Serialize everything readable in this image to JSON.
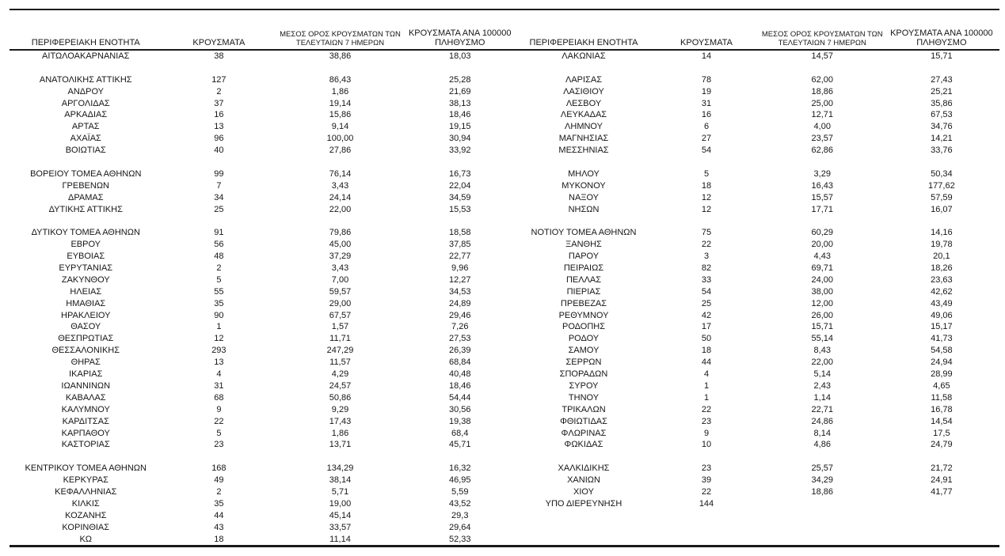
{
  "table": {
    "headers": {
      "region": "ΠΕΡΙΦΕΡΕΙΑΚΗ ΕΝΟΤΗΤΑ",
      "cases": "ΚΡΟΥΣΜΑΤΑ",
      "avg7_line1": "ΜΕΣΟΣ ΟΡΟΣ ΚΡΟΥΣΜΑΤΩΝ ΤΩΝ",
      "avg7_line2": "ΤΕΛΕΥΤΑΙΩΝ 7 ΗΜΕΡΩΝ",
      "per100k_line1": "ΚΡΟΥΣΜΑΤΑ ΑΝΑ 100000",
      "per100k_line2": "ΠΛΗΘΥΣΜΟ"
    },
    "left_rows": [
      [
        "ΑΙΤΩΛΟΑΚΑΡΝΑΝΙΑΣ",
        "38",
        "38,86",
        "18,03"
      ],
      null,
      [
        "ΑΝΑΤΟΛΙΚΗΣ ΑΤΤΙΚΗΣ",
        "127",
        "86,43",
        "25,28"
      ],
      [
        "ΑΝΔΡΟΥ",
        "2",
        "1,86",
        "21,69"
      ],
      [
        "ΑΡΓΟΛΙΔΑΣ",
        "37",
        "19,14",
        "38,13"
      ],
      [
        "ΑΡΚΑΔΙΑΣ",
        "16",
        "15,86",
        "18,46"
      ],
      [
        "ΑΡΤΑΣ",
        "13",
        "9,14",
        "19,15"
      ],
      [
        "ΑΧΑΪΑΣ",
        "96",
        "100,00",
        "30,94"
      ],
      [
        "ΒΟΙΩΤΙΑΣ",
        "40",
        "27,86",
        "33,92"
      ],
      null,
      [
        "ΒΟΡΕΙΟΥ ΤΟΜΕΑ ΑΘΗΝΩΝ",
        "99",
        "76,14",
        "16,73"
      ],
      [
        "ΓΡΕΒΕΝΩΝ",
        "7",
        "3,43",
        "22,04"
      ],
      [
        "ΔΡΑΜΑΣ",
        "34",
        "24,14",
        "34,59"
      ],
      [
        "ΔΥΤΙΚΗΣ ΑΤΤΙΚΗΣ",
        "25",
        "22,00",
        "15,53"
      ],
      null,
      [
        "ΔΥΤΙΚΟΥ ΤΟΜΕΑ ΑΘΗΝΩΝ",
        "91",
        "79,86",
        "18,58"
      ],
      [
        "ΕΒΡΟΥ",
        "56",
        "45,00",
        "37,85"
      ],
      [
        "ΕΥΒΟΙΑΣ",
        "48",
        "37,29",
        "22,77"
      ],
      [
        "ΕΥΡΥΤΑΝΙΑΣ",
        "2",
        "3,43",
        "9,96"
      ],
      [
        "ΖΑΚΥΝΘΟΥ",
        "5",
        "7,00",
        "12,27"
      ],
      [
        "ΗΛΕΙΑΣ",
        "55",
        "59,57",
        "34,53"
      ],
      [
        "ΗΜΑΘΙΑΣ",
        "35",
        "29,00",
        "24,89"
      ],
      [
        "ΗΡΑΚΛΕΙΟΥ",
        "90",
        "67,57",
        "29,46"
      ],
      [
        "ΘΑΣΟΥ",
        "1",
        "1,57",
        "7,26"
      ],
      [
        "ΘΕΣΠΡΩΤΙΑΣ",
        "12",
        "11,71",
        "27,53"
      ],
      [
        "ΘΕΣΣΑΛΟΝΙΚΗΣ",
        "293",
        "247,29",
        "26,39"
      ],
      [
        "ΘΗΡΑΣ",
        "13",
        "11,57",
        "68,84"
      ],
      [
        "ΙΚΑΡΙΑΣ",
        "4",
        "4,29",
        "40,48"
      ],
      [
        "ΙΩΑΝΝΙΝΩΝ",
        "31",
        "24,57",
        "18,46"
      ],
      [
        "ΚΑΒΑΛΑΣ",
        "68",
        "50,86",
        "54,44"
      ],
      [
        "ΚΑΛΥΜΝΟΥ",
        "9",
        "9,29",
        "30,56"
      ],
      [
        "ΚΑΡΔΙΤΣΑΣ",
        "22",
        "17,43",
        "19,38"
      ],
      [
        "ΚΑΡΠΑΘΟΥ",
        "5",
        "1,86",
        "68,4"
      ],
      [
        "ΚΑΣΤΟΡΙΑΣ",
        "23",
        "13,71",
        "45,71"
      ],
      null,
      [
        "ΚΕΝΤΡΙΚΟΥ ΤΟΜΕΑ ΑΘΗΝΩΝ",
        "168",
        "134,29",
        "16,32"
      ],
      [
        "ΚΕΡΚΥΡΑΣ",
        "49",
        "38,14",
        "46,95"
      ],
      [
        "ΚΕΦΑΛΛΗΝΙΑΣ",
        "2",
        "5,71",
        "5,59"
      ],
      [
        "ΚΙΛΚΙΣ",
        "35",
        "19,00",
        "43,52"
      ],
      [
        "ΚΟΖΑΝΗΣ",
        "44",
        "45,14",
        "29,3"
      ],
      [
        "ΚΟΡΙΝΘΙΑΣ",
        "43",
        "33,57",
        "29,64"
      ],
      [
        "ΚΩ",
        "18",
        "11,14",
        "52,33"
      ]
    ],
    "right_rows": [
      [
        "ΛΑΚΩΝΙΑΣ",
        "14",
        "14,57",
        "15,71"
      ],
      null,
      [
        "ΛΑΡΙΣΑΣ",
        "78",
        "62,00",
        "27,43"
      ],
      [
        "ΛΑΣΙΘΙΟΥ",
        "19",
        "18,86",
        "25,21"
      ],
      [
        "ΛΕΣΒΟΥ",
        "31",
        "25,00",
        "35,86"
      ],
      [
        "ΛΕΥΚΑΔΑΣ",
        "16",
        "12,71",
        "67,53"
      ],
      [
        "ΛΗΜΝΟΥ",
        "6",
        "4,00",
        "34,76"
      ],
      [
        "ΜΑΓΝΗΣΙΑΣ",
        "27",
        "23,57",
        "14,21"
      ],
      [
        "ΜΕΣΣΗΝΙΑΣ",
        "54",
        "62,86",
        "33,76"
      ],
      null,
      [
        "ΜΗΛΟΥ",
        "5",
        "3,29",
        "50,34"
      ],
      [
        "ΜΥΚΟΝΟΥ",
        "18",
        "16,43",
        "177,62"
      ],
      [
        "ΝΑΞΟΥ",
        "12",
        "15,57",
        "57,59"
      ],
      [
        "ΝΗΣΩΝ",
        "12",
        "17,71",
        "16,07"
      ],
      null,
      [
        "ΝΟΤΙΟΥ ΤΟΜΕΑ ΑΘΗΝΩΝ",
        "75",
        "60,29",
        "14,16"
      ],
      [
        "ΞΑΝΘΗΣ",
        "22",
        "20,00",
        "19,78"
      ],
      [
        "ΠΑΡΟΥ",
        "3",
        "4,43",
        "20,1"
      ],
      [
        "ΠΕΙΡΑΙΩΣ",
        "82",
        "69,71",
        "18,26"
      ],
      [
        "ΠΕΛΛΑΣ",
        "33",
        "24,00",
        "23,63"
      ],
      [
        "ΠΙΕΡΙΑΣ",
        "54",
        "38,00",
        "42,62"
      ],
      [
        "ΠΡΕΒΕΖΑΣ",
        "25",
        "12,00",
        "43,49"
      ],
      [
        "ΡΕΘΥΜΝΟΥ",
        "42",
        "26,00",
        "49,06"
      ],
      [
        "ΡΟΔΟΠΗΣ",
        "17",
        "15,71",
        "15,17"
      ],
      [
        "ΡΟΔΟΥ",
        "50",
        "55,14",
        "41,73"
      ],
      [
        "ΣΑΜΟΥ",
        "18",
        "8,43",
        "54,58"
      ],
      [
        "ΣΕΡΡΩΝ",
        "44",
        "22,00",
        "24,94"
      ],
      [
        "ΣΠΟΡΑΔΩΝ",
        "4",
        "5,14",
        "28,99"
      ],
      [
        "ΣΥΡΟΥ",
        "1",
        "2,43",
        "4,65"
      ],
      [
        "ΤΗΝΟΥ",
        "1",
        "1,14",
        "11,58"
      ],
      [
        "ΤΡΙΚΑΛΩΝ",
        "22",
        "22,71",
        "16,78"
      ],
      [
        "ΦΘΙΩΤΙΔΑΣ",
        "23",
        "24,86",
        "14,54"
      ],
      [
        "ΦΛΩΡΙΝΑΣ",
        "9",
        "8,14",
        "17,5"
      ],
      [
        "ΦΩΚΙΔΑΣ",
        "10",
        "4,86",
        "24,79"
      ],
      null,
      [
        "ΧΑΛΚΙΔΙΚΗΣ",
        "23",
        "25,57",
        "21,72"
      ],
      [
        "ΧΑΝΙΩΝ",
        "39",
        "34,29",
        "24,91"
      ],
      [
        "ΧΙΟΥ",
        "22",
        "18,86",
        "41,77"
      ],
      [
        "ΥΠΟ ΔΙΕΡΕΥΝΗΣΗ",
        "144",
        "",
        ""
      ],
      null,
      null,
      null
    ]
  }
}
